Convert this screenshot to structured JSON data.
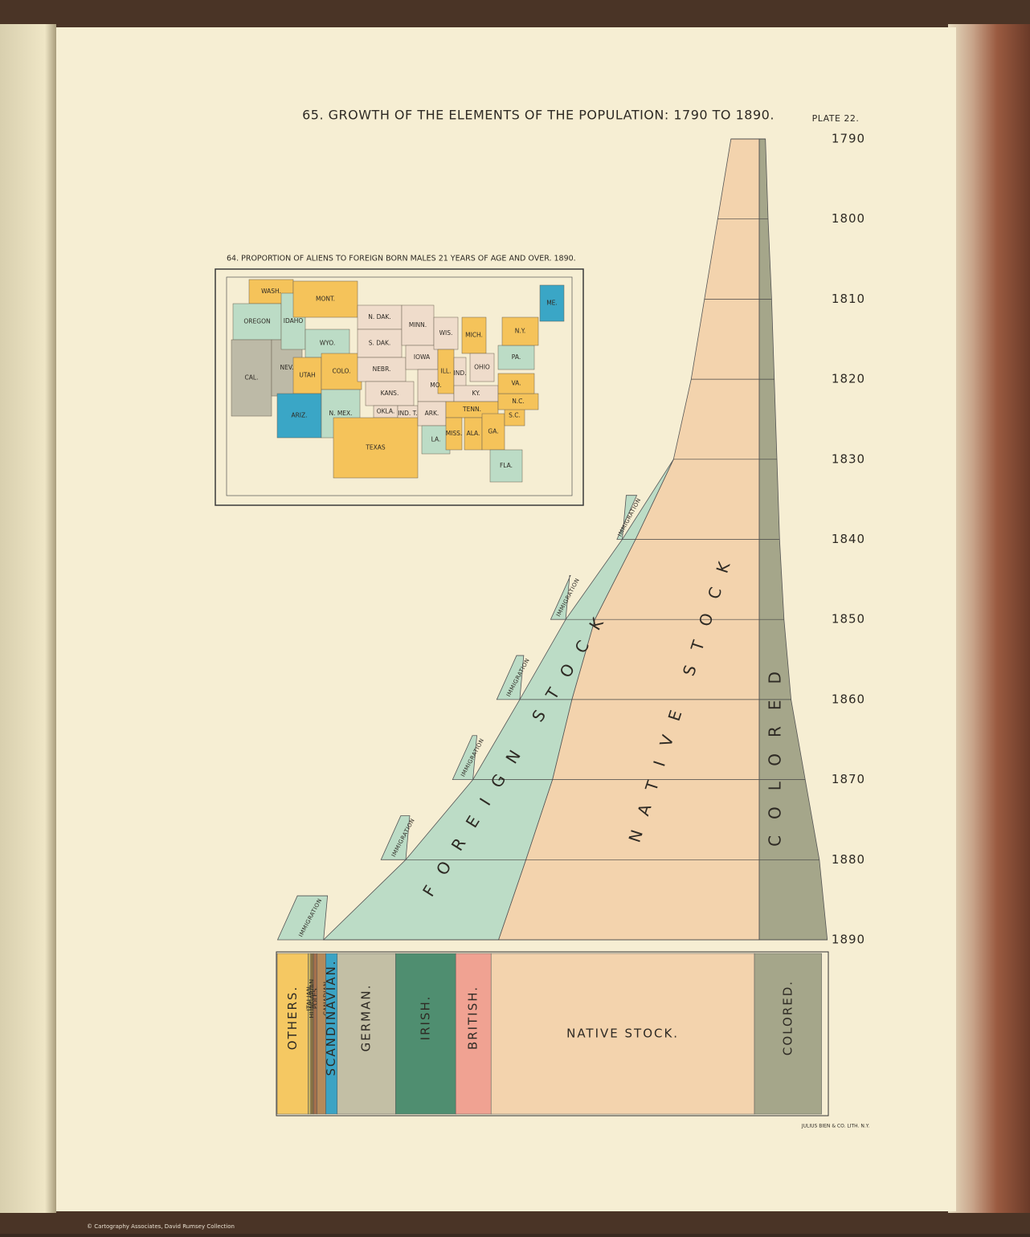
{
  "plate": "PLATE 22.",
  "imprint": "JULIUS BIEN & CO. LITH. N.Y.",
  "credit": "© Cartography Associates, David Rumsey Collection",
  "chart_data": [
    {
      "type": "area",
      "title": "65. GROWTH OF THE ELEMENTS OF THE POPULATION: 1790 TO 1890.",
      "x": [
        1790,
        1800,
        1810,
        1820,
        1830,
        1840,
        1850,
        1860,
        1870,
        1880,
        1890
      ],
      "series": [
        {
          "name": "COLORED",
          "color": "#a5a68a",
          "values": [
            0.7,
            1.0,
            1.4,
            1.7,
            2.0,
            2.3,
            2.8,
            3.6,
            5.2,
            6.8,
            7.7
          ]
        },
        {
          "name": "NATIVE STOCK",
          "color": "#f3d3ad",
          "values": [
            3.2,
            4.7,
            6.2,
            7.7,
            9.7,
            14.0,
            18.6,
            21.2,
            23.4,
            26.4,
            29.5
          ]
        },
        {
          "name": "FOREIGN STOCK",
          "color": "#bcdcc6",
          "values": [
            null,
            null,
            null,
            null,
            0,
            1.5,
            3.3,
            5.9,
            9.0,
            13.6,
            19.8
          ]
        },
        {
          "name": "IMMIGRATION",
          "color": "#bcdcc6",
          "values": [
            null,
            null,
            null,
            null,
            null,
            0.6,
            1.7,
            2.6,
            2.3,
            2.8,
            5.2
          ]
        }
      ]
    },
    {
      "type": "bar",
      "categories": [
        "OTHERS.",
        "ITALIAN.",
        "HUNGARIAN.",
        "POLES.",
        "CANADIAN.",
        "SCANDINAVIAN.",
        "GERMAN.",
        "IRISH.",
        "BRITISH.",
        "NATIVE STOCK.",
        "COLORED."
      ],
      "values": [
        3.5,
        0.3,
        0.3,
        0.4,
        1.0,
        1.3,
        6.6,
        6.8,
        4.0,
        29.8,
        7.6
      ],
      "colors": [
        "#f5c862",
        "#c9b25e",
        "#8a7444",
        "#a4704c",
        "#b58a5a",
        "#3ba3c4",
        "#c3bfa5",
        "#4f8e70",
        "#f0a292",
        "#f3d3ad",
        "#a5a68a"
      ]
    },
    {
      "type": "map",
      "title": "64. PROPORTION OF ALIENS TO FOREIGN BORN MALES 21 YEARS OF AGE AND OVER. 1890.",
      "regions": [
        {
          "name": "WASH.",
          "color": "#f5c35a"
        },
        {
          "name": "OREGON",
          "color": "#bcdcc6"
        },
        {
          "name": "CAL.",
          "color": "#bdbaa7"
        },
        {
          "name": "NEV.",
          "color": "#bdbaa7"
        },
        {
          "name": "IDAHO",
          "color": "#bcdcc6"
        },
        {
          "name": "MONT.",
          "color": "#f5c35a"
        },
        {
          "name": "WYO.",
          "color": "#bcdcc6"
        },
        {
          "name": "UTAH",
          "color": "#f5c35a"
        },
        {
          "name": "COLO.",
          "color": "#f5c35a"
        },
        {
          "name": "ARIZ.",
          "color": "#3aa6c6"
        },
        {
          "name": "N. MEX.",
          "color": "#bcdcc6"
        },
        {
          "name": "N. DAK.",
          "color": "#efdccb"
        },
        {
          "name": "S. DAK.",
          "color": "#efdccb"
        },
        {
          "name": "NEBR.",
          "color": "#efdccb"
        },
        {
          "name": "KANS.",
          "color": "#efdccb"
        },
        {
          "name": "OKLA.",
          "color": "#efdccb"
        },
        {
          "name": "IND. T.",
          "color": "#efdccb"
        },
        {
          "name": "TEXAS",
          "color": "#f5c35a"
        },
        {
          "name": "MINN.",
          "color": "#efdccb"
        },
        {
          "name": "IOWA",
          "color": "#efdccb"
        },
        {
          "name": "MO.",
          "color": "#efdccb"
        },
        {
          "name": "ARK.",
          "color": "#efdccb"
        },
        {
          "name": "LA.",
          "color": "#bcdcc6"
        },
        {
          "name": "WIS.",
          "color": "#efdccb"
        },
        {
          "name": "ILL.",
          "color": "#f5c35a"
        },
        {
          "name": "MICH.",
          "color": "#f5c35a"
        },
        {
          "name": "IND.",
          "color": "#efdccb"
        },
        {
          "name": "OHIO",
          "color": "#efdccb"
        },
        {
          "name": "KY.",
          "color": "#efdccb"
        },
        {
          "name": "TENN.",
          "color": "#f5c35a"
        },
        {
          "name": "MISS.",
          "color": "#f5c35a"
        },
        {
          "name": "ALA.",
          "color": "#f5c35a"
        },
        {
          "name": "GA.",
          "color": "#f5c35a"
        },
        {
          "name": "FLA.",
          "color": "#bcdcc6"
        },
        {
          "name": "S.C.",
          "color": "#f5c35a"
        },
        {
          "name": "N.C.",
          "color": "#f5c35a"
        },
        {
          "name": "VA.",
          "color": "#f5c35a"
        },
        {
          "name": "PA.",
          "color": "#bcdcc6"
        },
        {
          "name": "N.Y.",
          "color": "#f5c35a"
        },
        {
          "name": "ME.",
          "color": "#3aa6c6"
        }
      ]
    }
  ]
}
